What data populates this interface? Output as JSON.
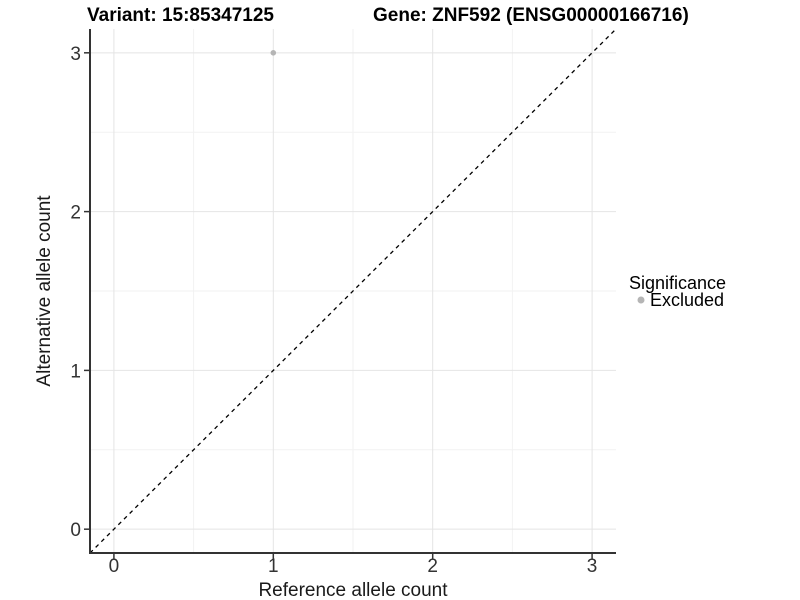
{
  "title": {
    "left": "Variant: 15:85347125",
    "right": "Gene: ZNF592 (ENSG00000166716)"
  },
  "legend": {
    "title": "Significance",
    "items": [
      {
        "label": "Excluded",
        "color": "#b5b5b5"
      }
    ]
  },
  "chart_data": {
    "type": "scatter",
    "title": "Variant: 15:85347125   Gene: ZNF592 (ENSG00000166716)",
    "xlabel": "Reference allele count",
    "ylabel": "Alternative allele count",
    "xlim": [
      -0.15,
      3.15
    ],
    "ylim": [
      -0.15,
      3.15
    ],
    "x_ticks": [
      0,
      1,
      2,
      3
    ],
    "y_ticks": [
      0,
      1,
      2,
      3
    ],
    "x_minor": [
      0.5,
      1.5,
      2.5
    ],
    "y_minor": [
      0.5,
      1.5,
      2.5
    ],
    "grid": true,
    "legend_position": "right",
    "series": [
      {
        "name": "Excluded",
        "points": [
          {
            "x": 1,
            "y": 3
          }
        ]
      }
    ],
    "identity_line": {
      "from": [
        -0.15,
        -0.15
      ],
      "to": [
        3.15,
        3.15
      ],
      "style": "dashed",
      "color": "#000000"
    },
    "colors": {
      "point": "#b5b5b5",
      "grid_major": "#e4e4e4",
      "grid_minor": "#f2f2f2",
      "axis": "#333333",
      "background": "#ffffff"
    }
  }
}
